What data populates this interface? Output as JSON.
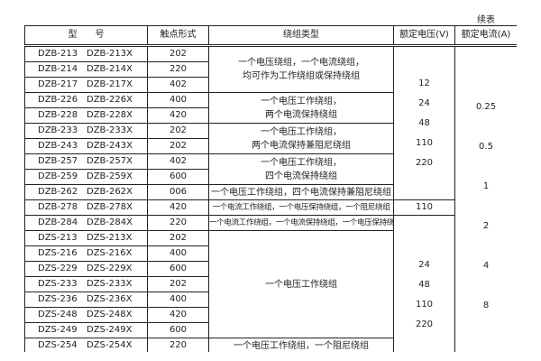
{
  "continued_label": "续表",
  "headers": {
    "model": "型　　号",
    "contact": "触点形式",
    "winding": "绕组类型",
    "voltage": "额定电压(V)",
    "current": "额定电流(A)"
  },
  "rows": [
    {
      "m1": "DZB-213",
      "m2": "DZB-213X",
      "c": "202"
    },
    {
      "m1": "DZB-214",
      "m2": "DZB-214X",
      "c": "220"
    },
    {
      "m1": "DZB-217",
      "m2": "DZB-217X",
      "c": "402"
    },
    {
      "m1": "DZB-226",
      "m2": "DZB-226X",
      "c": "400"
    },
    {
      "m1": "DZB-228",
      "m2": "DZB-228X",
      "c": "420"
    },
    {
      "m1": "DZB-233",
      "m2": "DZB-233X",
      "c": "202"
    },
    {
      "m1": "DZB-243",
      "m2": "DZB-243X",
      "c": "202"
    },
    {
      "m1": "DZB-257",
      "m2": "DZB-257X",
      "c": "402"
    },
    {
      "m1": "DZB-259",
      "m2": "DZB-259X",
      "c": "600"
    },
    {
      "m1": "DZB-262",
      "m2": "DZB-262X",
      "c": "006"
    },
    {
      "m1": "DZB-278",
      "m2": "DZB-278X",
      "c": "420"
    },
    {
      "m1": "DZB-284",
      "m2": "DZB-284X",
      "c": "220"
    },
    {
      "m1": "DZS-213",
      "m2": "DZS-213X",
      "c": "202"
    },
    {
      "m1": "DZS-216",
      "m2": "DZS-216X",
      "c": "400"
    },
    {
      "m1": "DZS-229",
      "m2": "DZS-229X",
      "c": "600"
    },
    {
      "m1": "DZS-233",
      "m2": "DZS-233X",
      "c": "202"
    },
    {
      "m1": "DZS-236",
      "m2": "DZS-236X",
      "c": "400"
    },
    {
      "m1": "DZS-248",
      "m2": "DZS-248X",
      "c": "420"
    },
    {
      "m1": "DZS-249",
      "m2": "DZS-249X",
      "c": "600"
    },
    {
      "m1": "DZS-254",
      "m2": "DZS-254X",
      "c": "220"
    }
  ],
  "windings": [
    [
      "一个电压绕组，一个电流绕组，",
      "均可作为工作绕组或保持绕组"
    ],
    [
      "一个电压工作绕组，",
      "两个电流保持绕组"
    ],
    [
      "一个电压工作绕组，",
      "两个电流保持兼阻尼绕组"
    ],
    [
      "一个电压工作绕组，",
      "四个电流保持绕组"
    ],
    [
      "一个电压工作绕组，四个电流保持兼阻尼绕组"
    ],
    [
      "一个电流工作绕组，一个电压保持绕组，一个阻尼绕组"
    ],
    [
      "一个电流工作绕组，一个电流保持绕组，一个电压保持绕组"
    ],
    [
      "一个电压工作绕组"
    ],
    [
      "一个电压工作绕组，一个阻尼绕组"
    ]
  ],
  "voltages": [
    [
      "12",
      "24",
      "48",
      "110",
      "220"
    ],
    [
      "110"
    ],
    [
      "24",
      "48",
      "110",
      "220"
    ]
  ],
  "currents": [
    "0.25",
    "0.5",
    "1",
    "2",
    "4",
    "8"
  ]
}
